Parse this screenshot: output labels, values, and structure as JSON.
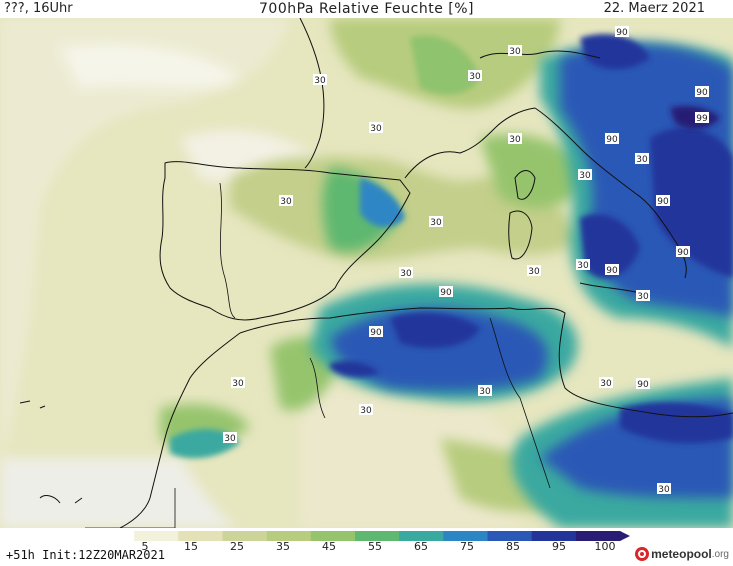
{
  "header": {
    "left": "???, 16Uhr",
    "title": "700hPa Relative Feuchte [%]",
    "date": "22. Maerz 2021"
  },
  "footer": {
    "run": "+51h Init:12Z20MAR2021",
    "logo_brand": "meteopool",
    "logo_tld": ".org"
  },
  "colorbar": {
    "ticks": [
      "5",
      "15",
      "25",
      "35",
      "45",
      "55",
      "65",
      "75",
      "85",
      "95",
      "100"
    ],
    "colors": [
      "#ffffff",
      "#f1f1dc",
      "#e2e2b6",
      "#cdd49a",
      "#b7cc7e",
      "#96c46d",
      "#5fb86f",
      "#3aa9a0",
      "#2d86c4",
      "#2b58b6",
      "#23359b",
      "#281c74"
    ]
  },
  "contour_labels": [
    {
      "text": "30",
      "id": "c1"
    },
    {
      "text": "30",
      "id": "c2"
    },
    {
      "text": "90",
      "id": "c3"
    },
    {
      "text": "30",
      "id": "c4"
    },
    {
      "text": "90",
      "id": "c5"
    },
    {
      "text": "99",
      "id": "c6"
    },
    {
      "text": "30",
      "id": "c7"
    },
    {
      "text": "90",
      "id": "c8"
    },
    {
      "text": "30",
      "id": "c9"
    },
    {
      "text": "30",
      "id": "c10"
    },
    {
      "text": "30",
      "id": "c11"
    },
    {
      "text": "90",
      "id": "c12"
    },
    {
      "text": "30",
      "id": "c13"
    },
    {
      "text": "30",
      "id": "c14"
    },
    {
      "text": "30",
      "id": "c15"
    },
    {
      "text": "90",
      "id": "c16"
    },
    {
      "text": "90",
      "id": "c17"
    },
    {
      "text": "30",
      "id": "c18"
    },
    {
      "text": "90",
      "id": "c19"
    },
    {
      "text": "30",
      "id": "c20"
    },
    {
      "text": "30",
      "id": "c21"
    },
    {
      "text": "30",
      "id": "c22"
    },
    {
      "text": "90",
      "id": "c23"
    },
    {
      "text": "90",
      "id": "c24"
    },
    {
      "text": "30",
      "id": "c25"
    },
    {
      "text": "30",
      "id": "c26"
    },
    {
      "text": "30",
      "id": "c27"
    },
    {
      "text": "30",
      "id": "c28"
    },
    {
      "text": "30",
      "id": "c29"
    }
  ]
}
